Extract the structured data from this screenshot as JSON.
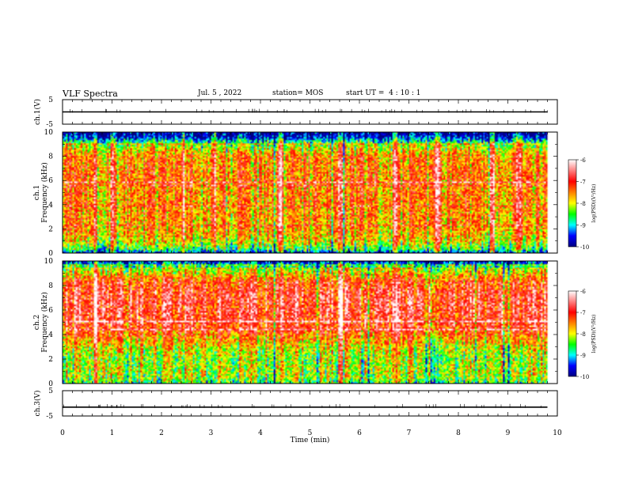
{
  "header": {
    "title": "VLF Spectra",
    "date": "Jul. 5 , 2022",
    "station": "station= MOS",
    "start": "start UT =  4 : 10 : 1"
  },
  "colorbar": {
    "label": "log(PSD)(V²/Hz)",
    "ticks": [
      -6,
      -7,
      -8,
      -9,
      -10
    ],
    "stops": [
      {
        "v": -10,
        "c": "#000080"
      },
      {
        "v": -9.5,
        "c": "#0000ff"
      },
      {
        "v": -9,
        "c": "#00ffff"
      },
      {
        "v": -8.5,
        "c": "#00ff00"
      },
      {
        "v": -8,
        "c": "#ffff00"
      },
      {
        "v": -7.5,
        "c": "#ff8000"
      },
      {
        "v": -7,
        "c": "#ff0000"
      },
      {
        "v": -6,
        "c": "#ffffff"
      }
    ]
  },
  "chart_data": [
    {
      "type": "line",
      "panel": "voltage",
      "ylabel": "ch.1(V)",
      "ylim": [
        -5,
        5
      ],
      "yticks": [
        5,
        -5
      ],
      "xlim": [
        0,
        10
      ],
      "series": [
        {
          "x": [
            0,
            9.8
          ],
          "values": [
            0,
            0
          ]
        }
      ]
    },
    {
      "type": "heatmap",
      "panel": "spectrogram",
      "ylabel": "ch.1 Frequency (kHz)",
      "ylim": [
        0,
        10
      ],
      "yticks": [
        0,
        2,
        4,
        6,
        8,
        10
      ],
      "xlim": [
        0,
        10
      ],
      "data_end_min": 9.8,
      "zlim": [
        -10,
        -6
      ],
      "profile": [
        [
          0.0,
          -9.6
        ],
        [
          0.3,
          -8.6
        ],
        [
          1.0,
          -7.9
        ],
        [
          2.0,
          -7.6
        ],
        [
          4.0,
          -7.5
        ],
        [
          6.0,
          -7.4
        ],
        [
          8.0,
          -7.5
        ],
        [
          9.0,
          -8.3
        ],
        [
          9.6,
          -9.7
        ],
        [
          10.0,
          -9.9
        ]
      ],
      "bright_events_min": [
        0.65,
        1.0,
        2.4,
        3.05,
        4.4,
        5.6,
        6.7,
        7.55,
        8.65,
        9.2
      ]
    },
    {
      "type": "heatmap",
      "panel": "spectrogram",
      "ylabel": "ch.2 Frequency (kHz)",
      "ylim": [
        0,
        10
      ],
      "yticks": [
        0,
        2,
        4,
        6,
        8,
        10
      ],
      "xlim": [
        0,
        10
      ],
      "data_end_min": 9.8,
      "zlim": [
        -10,
        -6
      ],
      "profile": [
        [
          0.0,
          -8.6
        ],
        [
          0.4,
          -8.2
        ],
        [
          1.0,
          -8.1
        ],
        [
          2.0,
          -8.2
        ],
        [
          3.0,
          -7.9
        ],
        [
          4.0,
          -7.3
        ],
        [
          5.0,
          -6.9
        ],
        [
          6.5,
          -6.8
        ],
        [
          7.5,
          -6.9
        ],
        [
          8.5,
          -7.3
        ],
        [
          9.3,
          -8.1
        ],
        [
          9.7,
          -9.0
        ],
        [
          10.0,
          -9.8
        ]
      ],
      "bright_events_min": [
        0.65,
        5.6,
        6.7
      ]
    },
    {
      "type": "line",
      "panel": "voltage",
      "ylabel": "ch.3(V)",
      "ylim": [
        -5,
        5
      ],
      "yticks": [
        5,
        -5
      ],
      "xlim": [
        0,
        10
      ],
      "xticks": [
        0,
        1,
        2,
        3,
        4,
        5,
        6,
        7,
        8,
        9,
        10
      ],
      "xlabel": "Time (min)",
      "series": [
        {
          "x": [
            0,
            9.8
          ],
          "values": [
            -1.5,
            -1.5
          ]
        }
      ]
    }
  ]
}
